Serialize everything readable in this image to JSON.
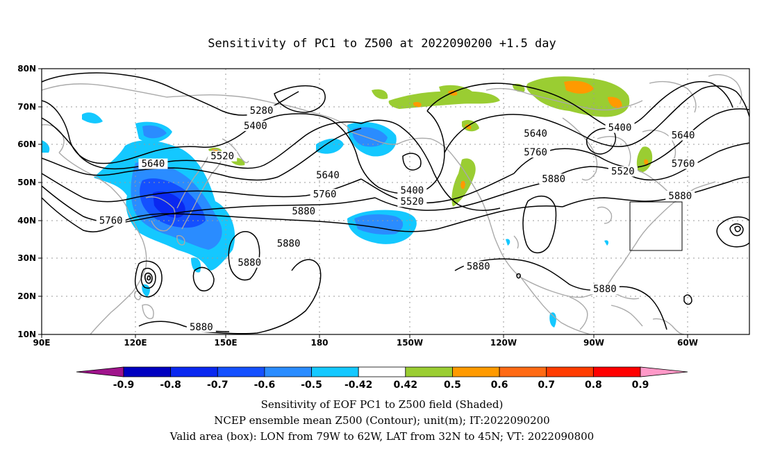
{
  "title": "Sensitivity of PC1 to Z500 at 2022090200 +1.5 day",
  "lon_labels": [
    "90E",
    "120E",
    "150E",
    "180",
    "150W",
    "120W",
    "90W",
    "60W"
  ],
  "lat_labels": [
    "80N",
    "70N",
    "60N",
    "50N",
    "40N",
    "30N",
    "20N",
    "10N"
  ],
  "contour_labels": [
    {
      "value": "5280",
      "lon": 163,
      "lat": 68.5
    },
    {
      "value": "5400",
      "lon": 161,
      "lat": 64.5
    },
    {
      "value": "5520",
      "lon": 150,
      "lat": 56.5
    },
    {
      "value": "5640",
      "lon": 127,
      "lat": 54.5
    },
    {
      "value": "5640",
      "lon": 185,
      "lat": 51.5
    },
    {
      "value": "5400",
      "lon": 213,
      "lat": 47.5
    },
    {
      "value": "5520",
      "lon": 213,
      "lat": 44.5
    },
    {
      "value": "5760",
      "lon": 184,
      "lat": 46.5
    },
    {
      "value": "5880",
      "lon": 177,
      "lat": 42.0
    },
    {
      "value": "5760",
      "lon": 113,
      "lat": 39.5
    },
    {
      "value": "5880",
      "lon": 172,
      "lat": 33.5
    },
    {
      "value": "5880",
      "lon": 159,
      "lat": 28.5
    },
    {
      "value": "5880",
      "lon": 235,
      "lat": 27.5
    },
    {
      "value": "5880",
      "lon": 143,
      "lat": 11.5
    },
    {
      "value": "5640",
      "lon": 254,
      "lat": 62.5
    },
    {
      "value": "5400",
      "lon": 282,
      "lat": 64.0
    },
    {
      "value": "5760",
      "lon": 254,
      "lat": 57.5
    },
    {
      "value": "5880",
      "lon": 260,
      "lat": 50.5
    },
    {
      "value": "5520",
      "lon": 283,
      "lat": 52.5
    },
    {
      "value": "5640",
      "lon": 303,
      "lat": 62.0
    },
    {
      "value": "5760",
      "lon": 303,
      "lat": 54.5
    },
    {
      "value": "5880",
      "lon": 302,
      "lat": 46.0
    },
    {
      "value": "5880",
      "lon": 277,
      "lat": 21.5
    }
  ],
  "colorbar": {
    "labels": [
      "-0.9",
      "-0.8",
      "-0.7",
      "-0.6",
      "-0.5",
      "-0.42",
      "0.42",
      "0.5",
      "0.6",
      "0.7",
      "0.8",
      "0.9"
    ],
    "colors": [
      "#a0148c",
      "#0000c0",
      "#0a28f0",
      "#1450ff",
      "#2a8cff",
      "#14c8ff",
      "#ffffff",
      "#9acd32",
      "#ff9a00",
      "#ff6a14",
      "#ff3c00",
      "#ff0000",
      "#ff99c8"
    ]
  },
  "captions": [
    "Sensitivity of EOF PC1 to Z500 field (Shaded)",
    "NCEP ensemble mean Z500 (Contour); unit(m); IT:2022090200",
    "Valid area (box): LON from 79W to 62W, LAT from 32N to 45N; VT: 2022090800"
  ],
  "map_extent": {
    "lon": [
      90,
      325
    ],
    "lat": [
      10,
      80
    ]
  },
  "valid_box": {
    "lon": [
      281,
      298
    ],
    "lat": [
      32,
      45
    ]
  }
}
